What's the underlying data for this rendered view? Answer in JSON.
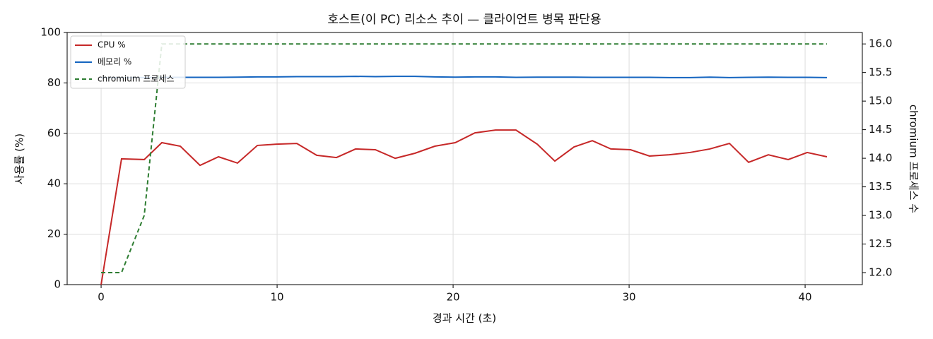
{
  "chart_data": {
    "type": "line",
    "title": "호스트(이 PC) 리소스 추이 — 클라이언트 병목 판단용",
    "x_label": "경과 시간 (초)",
    "y_label": "사용률 (%)",
    "y2_label": "chromium 프로세스 수",
    "x": [
      0,
      1.16,
      2.45,
      3.45,
      4.5,
      5.62,
      6.67,
      7.75,
      8.88,
      9.96,
      11.12,
      12.25,
      13.37,
      14.46,
      15.58,
      16.71,
      17.83,
      18.96,
      20.12,
      21.24,
      22.41,
      23.57,
      24.78,
      25.78,
      26.87,
      27.91,
      28.96,
      30.08,
      31.16,
      32.29,
      33.45,
      34.58,
      35.7,
      36.79,
      37.91,
      39.04,
      40.12,
      41.24
    ],
    "series": [
      {
        "name": "CPU %",
        "color": "#c62828",
        "linestyle": "solid",
        "values": [
          0,
          49.9,
          49.6,
          56.3,
          54.9,
          47.3,
          50.7,
          48.2,
          55.2,
          55.7,
          56.0,
          51.3,
          50.4,
          53.8,
          53.5,
          50.1,
          52.1,
          54.9,
          56.3,
          60.2,
          61.3,
          61.3,
          55.7,
          49.0,
          54.6,
          57.1,
          53.8,
          53.5,
          51.0,
          51.5,
          52.4,
          53.8,
          56.0,
          48.5,
          51.5,
          49.6,
          52.4,
          50.7
        ]
      },
      {
        "name": "메모리 %",
        "color": "#1565c0",
        "linestyle": "solid",
        "values": [
          82.0,
          82.1,
          82.1,
          82.2,
          82.2,
          82.2,
          82.2,
          82.3,
          82.4,
          82.4,
          82.5,
          82.5,
          82.5,
          82.6,
          82.5,
          82.6,
          82.6,
          82.4,
          82.3,
          82.4,
          82.4,
          82.2,
          82.3,
          82.3,
          82.3,
          82.2,
          82.2,
          82.2,
          82.2,
          82.1,
          82.1,
          82.3,
          82.1,
          82.2,
          82.3,
          82.2,
          82.2,
          82.1
        ]
      },
      {
        "name": "chromium 프로세스",
        "color": "#2e7d32",
        "linestyle": "dashed",
        "axis": "y2",
        "values": [
          12,
          12,
          13,
          16,
          16,
          16,
          16,
          16,
          16,
          16,
          16,
          16,
          16,
          16,
          16,
          16,
          16,
          16,
          16,
          16,
          16,
          16,
          16,
          16,
          16,
          16,
          16,
          16,
          16,
          16,
          16,
          16,
          16,
          16,
          16,
          16,
          16,
          16
        ]
      }
    ],
    "xlim": [
      -1.93,
      43.25
    ],
    "xticks": [
      0,
      10,
      20,
      30,
      40
    ],
    "ylim": [
      0,
      100
    ],
    "yticks": [
      0,
      20,
      40,
      60,
      80,
      100
    ],
    "y2lim": [
      11.79,
      16.2
    ],
    "y2ticks": [
      {
        "value": 12,
        "label": "12.0"
      },
      {
        "value": 12.5,
        "label": "12.5"
      },
      {
        "value": 13,
        "label": "13.0"
      },
      {
        "value": 13.5,
        "label": "13.5"
      },
      {
        "value": 14,
        "label": "14.0"
      },
      {
        "value": 14.5,
        "label": "14.5"
      },
      {
        "value": 15,
        "label": "15.0"
      },
      {
        "value": 15.5,
        "label": "15.5"
      },
      {
        "value": 16,
        "label": "16.0"
      }
    ],
    "grid": true,
    "legend": "upper-left"
  }
}
